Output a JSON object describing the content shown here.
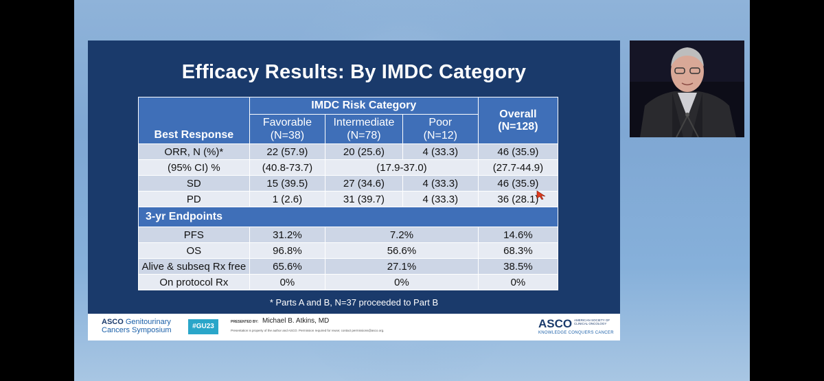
{
  "slide": {
    "title": "Efficacy Results: By IMDC Category",
    "table": {
      "group_header": "IMDC Risk Category",
      "best_response_label": "Best Response",
      "columns": [
        {
          "name": "Favorable",
          "n": "(N=38)"
        },
        {
          "name": "Intermediate",
          "n": "(N=78)"
        },
        {
          "name": "Poor",
          "n": "(N=12)"
        }
      ],
      "overall": {
        "name": "Overall",
        "n": "(N=128)"
      },
      "rows": [
        {
          "label": "ORR, N (%)*",
          "fav": "22 (57.9)",
          "int": "20 (25.6)",
          "poor": "4 (33.3)",
          "overall": "46 (35.9)"
        },
        {
          "label": "(95% CI) %",
          "fav": "(40.8-73.7)",
          "int_poor": "(17.9-37.0)",
          "overall": "(27.7-44.9)"
        },
        {
          "label": "SD",
          "fav": "15 (39.5)",
          "int": "27 (34.6)",
          "poor": "4 (33.3)",
          "overall": "46 (35.9)"
        },
        {
          "label": "PD",
          "fav": "1 (2.6)",
          "int": "31 (39.7)",
          "poor": "4 (33.3)",
          "overall": "36 (28.1)"
        }
      ],
      "section_header": "3-yr Endpoints",
      "endpoints": [
        {
          "label": "PFS",
          "fav": "31.2%",
          "int_poor": "7.2%",
          "overall": "14.6%"
        },
        {
          "label": "OS",
          "fav": "96.8%",
          "int_poor": "56.6%",
          "overall": "68.3%"
        },
        {
          "label": "Alive & subseq Rx free",
          "fav": "65.6%",
          "int_poor": "27.1%",
          "overall": "38.5%"
        },
        {
          "label": "On protocol Rx",
          "fav": "0%",
          "int_poor": "0%",
          "overall": "0%"
        }
      ]
    },
    "footnote": "* Parts A and B, N=37 proceeded to Part B",
    "footer": {
      "asco": "ASCO",
      "meeting_line1": "Genitourinary",
      "meeting_line2": "Cancers Symposium",
      "hashtag": "#GU23",
      "presented_by": "PRESENTED BY:",
      "presenter": "Michael B. Atkins, MD",
      "disclaimer": "Presentation is property of the author and ASCO. Permission required for reuse; contact permissions@asco.org.",
      "logo": "ASCO",
      "logo_sub": "AMERICAN SOCIETY OF CLINICAL ONCOLOGY",
      "tagline": "KNOWLEDGE CONQUERS CANCER"
    }
  },
  "colors": {
    "slide_bg": "#1a3a6b",
    "header_blue": "#3f6fb8",
    "row_dark": "#cdd6e6",
    "row_light": "#e7ebf3"
  }
}
